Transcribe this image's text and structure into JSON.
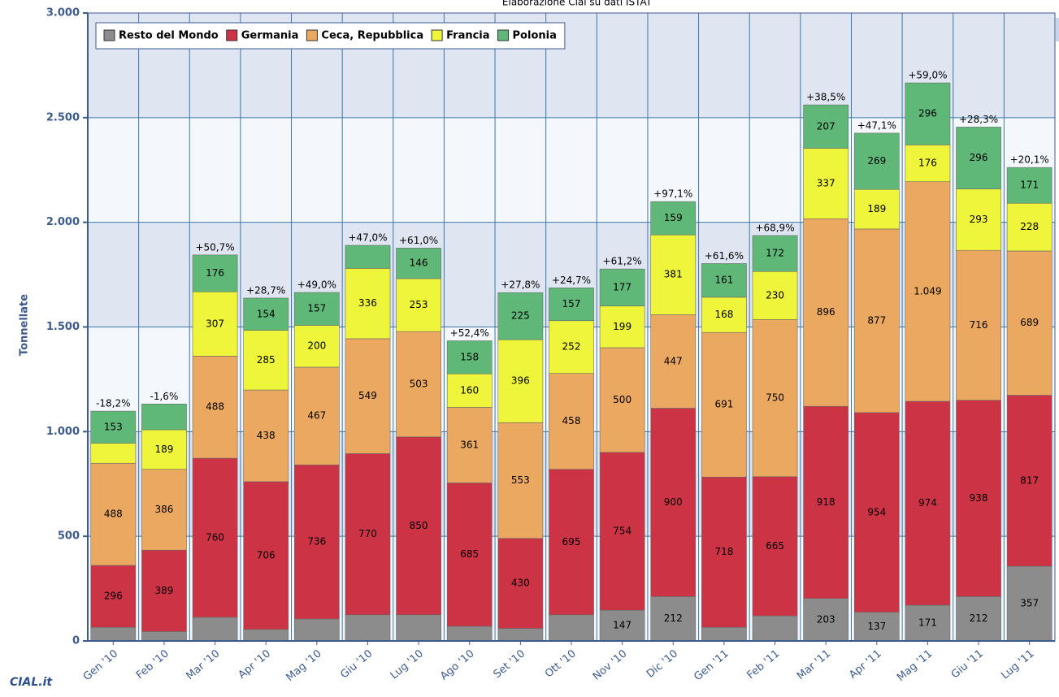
{
  "chart_data": {
    "type": "stacked-bar",
    "subtitle": "Elaborazione Cial su dati ISTAT",
    "y_label": "Tonnellate",
    "logo": "CIAL.it",
    "categories": [
      "Gen '10",
      "Feb '10",
      "Mar '10",
      "Apr '10",
      "Mag '10",
      "Giu '10",
      "Lug '10",
      "Ago '10",
      "Set '10",
      "Ott '10",
      "Nov '10",
      "Dic '10",
      "Gen '11",
      "Feb '11",
      "Mar '11",
      "Apr '11",
      "Mag '11",
      "Giu '11",
      "Lug '11"
    ],
    "series": [
      {
        "name": "Resto del Mondo",
        "color": "#8c8c8c",
        "values": [
          65,
          45,
          113,
          55,
          105,
          125,
          125,
          70,
          60,
          125,
          147,
          212,
          65,
          120,
          203,
          137,
          171,
          212,
          357
        ],
        "value_labels": [
          null,
          null,
          null,
          null,
          null,
          null,
          null,
          null,
          null,
          null,
          "147",
          "212",
          null,
          null,
          "203",
          "137",
          "171",
          "212",
          "357"
        ]
      },
      {
        "name": "Germania",
        "color": "#cc3344",
        "values": [
          296,
          389,
          760,
          706,
          736,
          770,
          850,
          685,
          430,
          695,
          754,
          900,
          718,
          665,
          918,
          954,
          974,
          938,
          817
        ],
        "value_labels": [
          "296",
          "389",
          "760",
          "706",
          "736",
          "770",
          "850",
          "685",
          "430",
          "695",
          "754",
          "900",
          "718",
          "665",
          "918",
          "954",
          "974",
          "938",
          "817"
        ]
      },
      {
        "name": "Ceca, Repubblica",
        "color": "#eaa860",
        "values": [
          488,
          386,
          488,
          438,
          467,
          549,
          503,
          361,
          553,
          458,
          500,
          447,
          691,
          750,
          896,
          877,
          1049,
          716,
          689
        ],
        "value_labels": [
          "488",
          "386",
          "488",
          "438",
          "467",
          "549",
          "503",
          "361",
          "553",
          "458",
          "500",
          "447",
          "691",
          "750",
          "896",
          "877",
          "1.049",
          "716",
          "689"
        ]
      },
      {
        "name": "Francia",
        "color": "#eef53a",
        "values": [
          96,
          189,
          307,
          285,
          200,
          336,
          253,
          160,
          396,
          252,
          199,
          381,
          168,
          230,
          337,
          189,
          176,
          293,
          228
        ],
        "value_labels": [
          null,
          "189",
          "307",
          "285",
          "200",
          "336",
          "253",
          "160",
          "396",
          "252",
          "199",
          "381",
          "168",
          "230",
          "337",
          "189",
          "176",
          "293",
          "228"
        ]
      },
      {
        "name": "Polonia",
        "color": "#5fb877",
        "values": [
          153,
          123,
          176,
          154,
          157,
          110,
          146,
          158,
          225,
          157,
          177,
          159,
          161,
          172,
          207,
          269,
          296,
          296,
          171
        ],
        "value_labels": [
          "153",
          null,
          "176",
          "154",
          "157",
          null,
          "146",
          "158",
          "225",
          "157",
          "177",
          "159",
          "161",
          "172",
          "207",
          "269",
          "296",
          "296",
          "171"
        ]
      }
    ],
    "annotations": [
      "-18,2%",
      "-1,6%",
      "+50,7%",
      "+28,7%",
      "+49,0%",
      "+47,0%",
      "+61,0%",
      "+52,4%",
      "+27,8%",
      "+24,7%",
      "+61,2%",
      "+97,1%",
      "+61,6%",
      "+68,9%",
      "+38,5%",
      "+47,1%",
      "+59,0%",
      "+28,3%",
      "+20,1%"
    ],
    "ylim": [
      0,
      3000
    ],
    "yticks": [
      0,
      500,
      {
        "value": 1000,
        "label": "1.000"
      },
      {
        "value": 1500,
        "label": "1.500"
      },
      {
        "value": 2000,
        "label": "2.000"
      },
      {
        "value": 2500,
        "label": "2.500"
      },
      {
        "value": 3000,
        "label": "3.000"
      }
    ],
    "grid": true,
    "legend": "top-left"
  }
}
